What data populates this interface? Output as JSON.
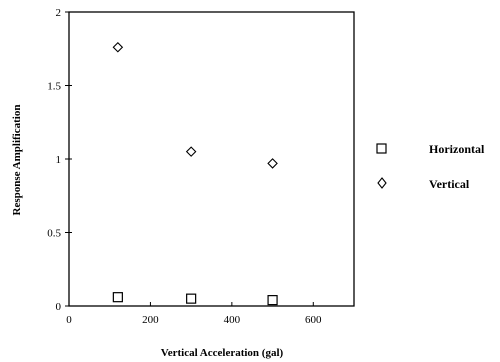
{
  "chart_data": {
    "type": "scatter",
    "xlabel": "Vertical Acceleration  (gal)",
    "ylabel": "Response Amplification",
    "xlim": [
      0,
      700
    ],
    "ylim": [
      0,
      2
    ],
    "x_ticks": [
      "0",
      "200",
      "400",
      "600"
    ],
    "y_ticks": [
      "0",
      "0.5",
      "1",
      "1.5",
      "2"
    ],
    "x_tick_values": [
      0,
      200,
      400,
      600
    ],
    "y_tick_values": [
      0,
      0.5,
      1,
      1.5,
      2
    ],
    "grid": false,
    "legend_position": "right",
    "series": [
      {
        "name": "Horizontal",
        "marker": "square",
        "x": [
          120,
          300,
          500
        ],
        "y": [
          0.06,
          0.05,
          0.04
        ]
      },
      {
        "name": "Vertical",
        "marker": "diamond",
        "x": [
          120,
          300,
          500
        ],
        "y": [
          1.76,
          1.05,
          0.97
        ]
      }
    ]
  }
}
